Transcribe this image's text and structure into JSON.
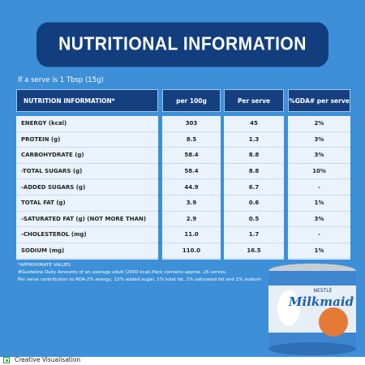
{
  "title": "NUTRITIONAL INFORMATION",
  "serve_note": "If a serve is 1 Tbsp (15g)",
  "table": {
    "header": [
      "NUTRITION INFORMATION*",
      "per 100g",
      "Per serve",
      "%GDA# per serve"
    ],
    "rows": [
      [
        "ENERGY (kcal)",
        "303",
        "45",
        "2%"
      ],
      [
        "PROTEIN (g)",
        "8.5",
        "1.3",
        "3%"
      ],
      [
        "CARBOHYDRATE (g)",
        "58.4",
        "8.8",
        "3%"
      ],
      [
        "-TOTAL SUGARS (g)",
        "58.4",
        "8.8",
        "10%"
      ],
      [
        "-ADDED SUGARS (g)",
        "44.9",
        "6.7",
        "-"
      ],
      [
        "TOTAL FAT (g)",
        "3.9",
        "0.6",
        "1%"
      ],
      [
        "-SATURATED FAT (g) (NOT MORE THAN)",
        "2.9",
        "0.5",
        "3%"
      ],
      [
        "-CHOLESTEROL (mg)",
        "11.0",
        "1.7",
        "-"
      ],
      [
        "SODIUM (mg)",
        "110.0",
        "16.5",
        "1%"
      ]
    ]
  },
  "footnotes": [
    "*APPROXIMATE VALUES",
    "#Guideline Daily Amounts of an average adult (2000 kcal).Pack contains approx. 25 serves.",
    "Per serve contribution to RDA-2% energy, 13% added sugar, 1% total fat, 2% saturated fat and 1% sodium"
  ],
  "product": {
    "brand": "NESTLÉ",
    "name": "Milkmaid"
  },
  "footer": "Creative Visualisation"
}
